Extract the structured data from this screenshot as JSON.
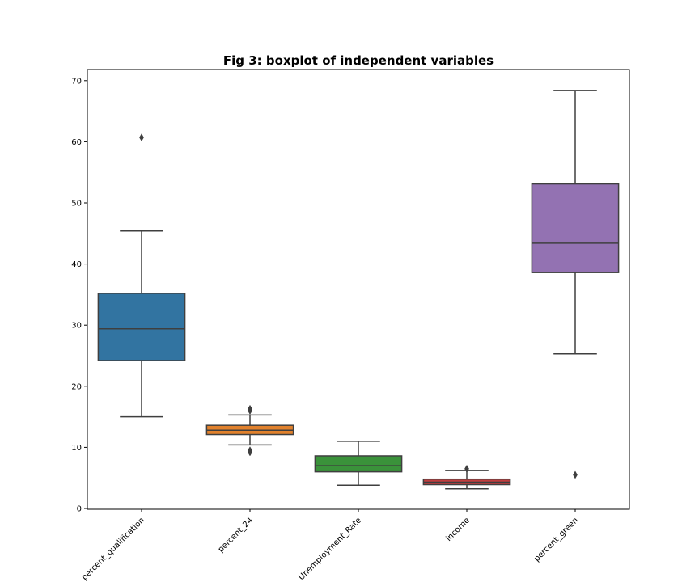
{
  "chart_data": {
    "type": "box",
    "title": "Fig 3: boxplot of independent variables",
    "xlabel": "",
    "ylabel": "",
    "ylim": [
      0,
      72
    ],
    "yticks": [
      0,
      10,
      20,
      30,
      40,
      50,
      60,
      70
    ],
    "grid": false,
    "categories": [
      "percent_qualification",
      "percent_24",
      "Unemployment_Rate",
      "income",
      "percent_green"
    ],
    "boxes": [
      {
        "category": "percent_qualification",
        "whisker_low": 15.0,
        "q1": 24.2,
        "median": 29.4,
        "q3": 35.2,
        "whisker_high": 45.4,
        "outliers": [
          60.7
        ],
        "color": "#3274a1"
      },
      {
        "category": "percent_24",
        "whisker_low": 10.4,
        "q1": 12.1,
        "median": 12.8,
        "q3": 13.6,
        "whisker_high": 15.3,
        "outliers": [
          16.0,
          16.3,
          9.2,
          9.5
        ],
        "color": "#e1812c"
      },
      {
        "category": "Unemployment_Rate",
        "whisker_low": 3.8,
        "q1": 6.0,
        "median": 7.0,
        "q3": 8.6,
        "whisker_high": 11.0,
        "outliers": [],
        "color": "#3a923a"
      },
      {
        "category": "income",
        "whisker_low": 3.2,
        "q1": 3.9,
        "median": 4.3,
        "q3": 4.8,
        "whisker_high": 6.2,
        "outliers": [
          6.5
        ],
        "color": "#c03d3e"
      },
      {
        "category": "percent_green",
        "whisker_low": 25.3,
        "q1": 38.6,
        "median": 43.4,
        "q3": 53.1,
        "whisker_high": 68.4,
        "outliers": [
          5.5
        ],
        "color": "#9372b2"
      }
    ]
  }
}
